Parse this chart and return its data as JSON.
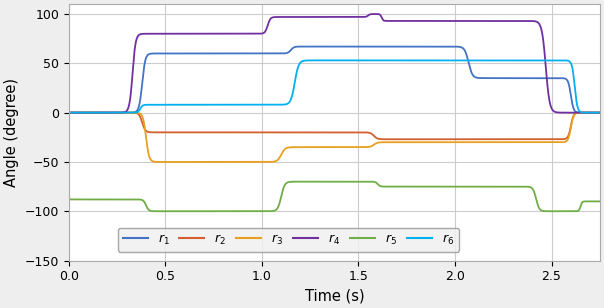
{
  "xlabel": "Time (s)",
  "ylabel": "Angle (degree)",
  "xlim": [
    0,
    2.75
  ],
  "ylim": [
    -150,
    110
  ],
  "yticks": [
    -150,
    -100,
    -50,
    0,
    50,
    100
  ],
  "xticks": [
    0,
    0.5,
    1.0,
    1.5,
    2.0,
    2.5
  ],
  "background_color": "#eeeeee",
  "axes_color": "#ffffff",
  "grid_color": "#cccccc",
  "legend_colors": [
    "#4472c4",
    "#d45f2e",
    "#e8a020",
    "#7030a0",
    "#70ad47",
    "#00b0f0"
  ],
  "lw": 1.3
}
